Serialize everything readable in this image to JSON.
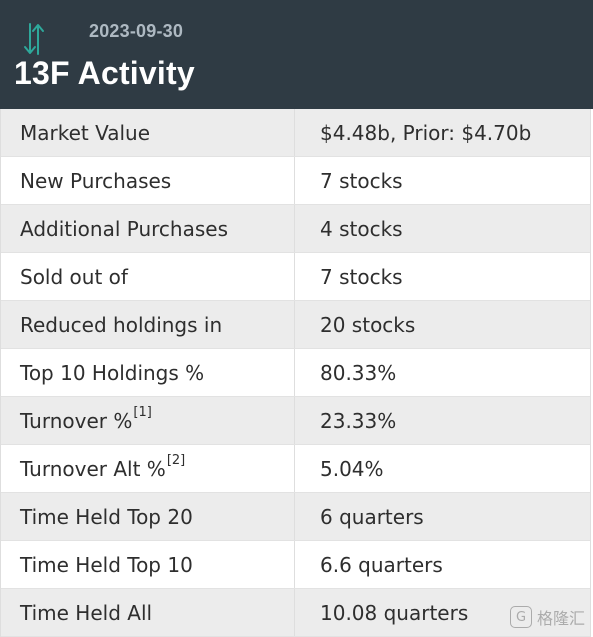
{
  "header": {
    "date": "2023-09-30",
    "title": "13F Activity",
    "icon_name": "up-down-arrows-icon",
    "background_color": "#2f3b44",
    "date_color": "#aeb9c2",
    "title_color": "#ffffff",
    "icon_color": "#2ea89b"
  },
  "rows": [
    {
      "label": "Market Value",
      "value": "$4.48b, Prior: $4.70b"
    },
    {
      "label": "New Purchases",
      "value": "7 stocks"
    },
    {
      "label": "Additional Purchases",
      "value": "4 stocks"
    },
    {
      "label": "Sold out of",
      "value": "7 stocks"
    },
    {
      "label": "Reduced holdings in",
      "value": "20 stocks"
    },
    {
      "label": "Top 10 Holdings %",
      "value": "80.33%"
    },
    {
      "label": "Turnover %",
      "sup": "[1]",
      "value": "23.33%"
    },
    {
      "label": "Turnover Alt %",
      "sup": "[2]",
      "value": "5.04%"
    },
    {
      "label": "Time Held Top 20",
      "value": "6 quarters"
    },
    {
      "label": "Time Held Top 10",
      "value": "6.6 quarters"
    },
    {
      "label": "Time Held All",
      "value": "10.08 quarters"
    }
  ],
  "watermark": {
    "mark": "G",
    "text": "格隆汇"
  }
}
